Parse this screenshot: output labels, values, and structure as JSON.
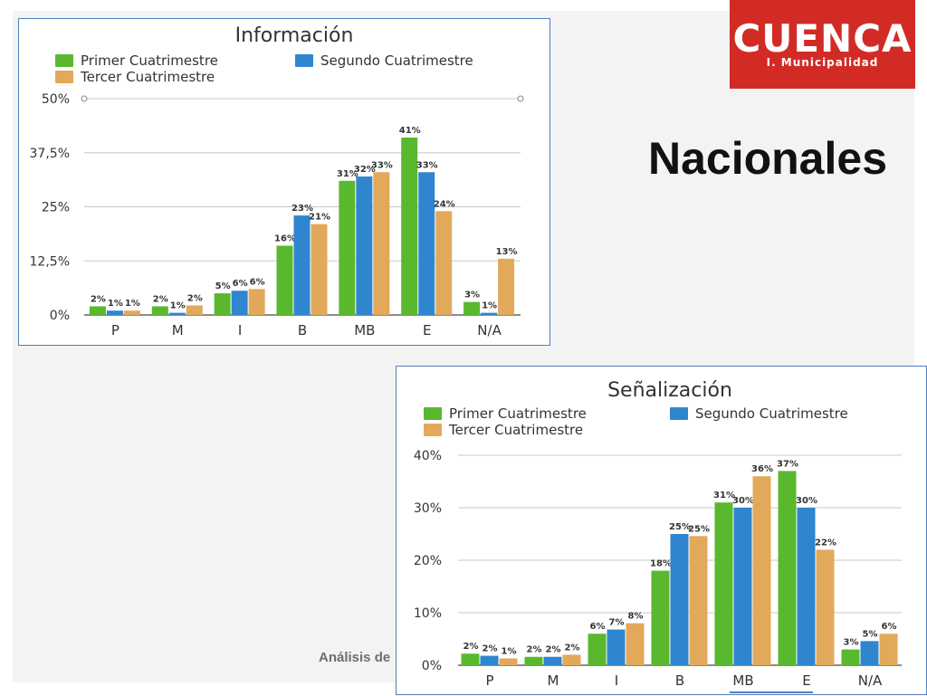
{
  "slide": {
    "heading": "Nacionales",
    "footer_text": "Análisis de la"
  },
  "logo": {
    "name": "CUENCA",
    "subtitle": "I. Municipalidad",
    "bg_color": "#d22b26"
  },
  "colors": {
    "primer": "#5ab82e",
    "segundo": "#2f86cf",
    "tercer": "#e2a95a"
  },
  "chart_data": [
    {
      "type": "bar",
      "title": "Información",
      "categories": [
        "P",
        "M",
        "I",
        "B",
        "MB",
        "E",
        "N/A"
      ],
      "ylim": [
        0,
        50
      ],
      "yticks": [
        0,
        12.5,
        25,
        37.5,
        50
      ],
      "ytick_labels": [
        "0%",
        "12,5%",
        "25%",
        "37,5%",
        "50%"
      ],
      "grid": true,
      "legend_position": "top",
      "series": [
        {
          "name": "Primer Cuatrimestre",
          "values": [
            2,
            2,
            5,
            16,
            31,
            41,
            3
          ],
          "labels": [
            "2%",
            "2%",
            "5%",
            "16%",
            "31%",
            "41%",
            "3%"
          ]
        },
        {
          "name": "Segundo Cuatrimestre",
          "values": [
            1,
            0.5,
            5.6,
            23,
            32,
            33,
            0.5
          ],
          "labels": [
            "1%",
            "1%",
            "6%",
            "23%",
            "32%",
            "33%",
            "1%"
          ]
        },
        {
          "name": "Tercer Cuatrimestre",
          "values": [
            1,
            2.2,
            6,
            21,
            33,
            24,
            13
          ],
          "labels": [
            "1%",
            "2%",
            "6%",
            "21%",
            "33%",
            "24%",
            "13%"
          ]
        }
      ]
    },
    {
      "type": "bar",
      "title": "Señalización",
      "categories": [
        "P",
        "M",
        "I",
        "B",
        "MB",
        "E",
        "N/A"
      ],
      "ylim": [
        0,
        40
      ],
      "yticks": [
        0,
        10,
        20,
        30,
        40
      ],
      "ytick_labels": [
        "0%",
        "10%",
        "20%",
        "30%",
        "40%"
      ],
      "grid": true,
      "legend_position": "top",
      "series": [
        {
          "name": "Primer Cuatrimestre",
          "values": [
            2.2,
            1.6,
            6,
            18,
            31,
            37,
            3
          ],
          "labels": [
            "2%",
            "2%",
            "6%",
            "18%",
            "31%",
            "37%",
            "3%"
          ]
        },
        {
          "name": "Segundo Cuatrimestre",
          "values": [
            1.8,
            1.6,
            6.8,
            25,
            30,
            30,
            4.6
          ],
          "labels": [
            "2%",
            "2%",
            "7%",
            "25%",
            "30%",
            "30%",
            "5%"
          ]
        },
        {
          "name": "Tercer Cuatrimestre",
          "values": [
            1.3,
            2,
            8,
            24.6,
            36,
            22,
            6
          ],
          "labels": [
            "1%",
            "2%",
            "8%",
            "25%",
            "36%",
            "22%",
            "6%"
          ]
        }
      ]
    }
  ]
}
